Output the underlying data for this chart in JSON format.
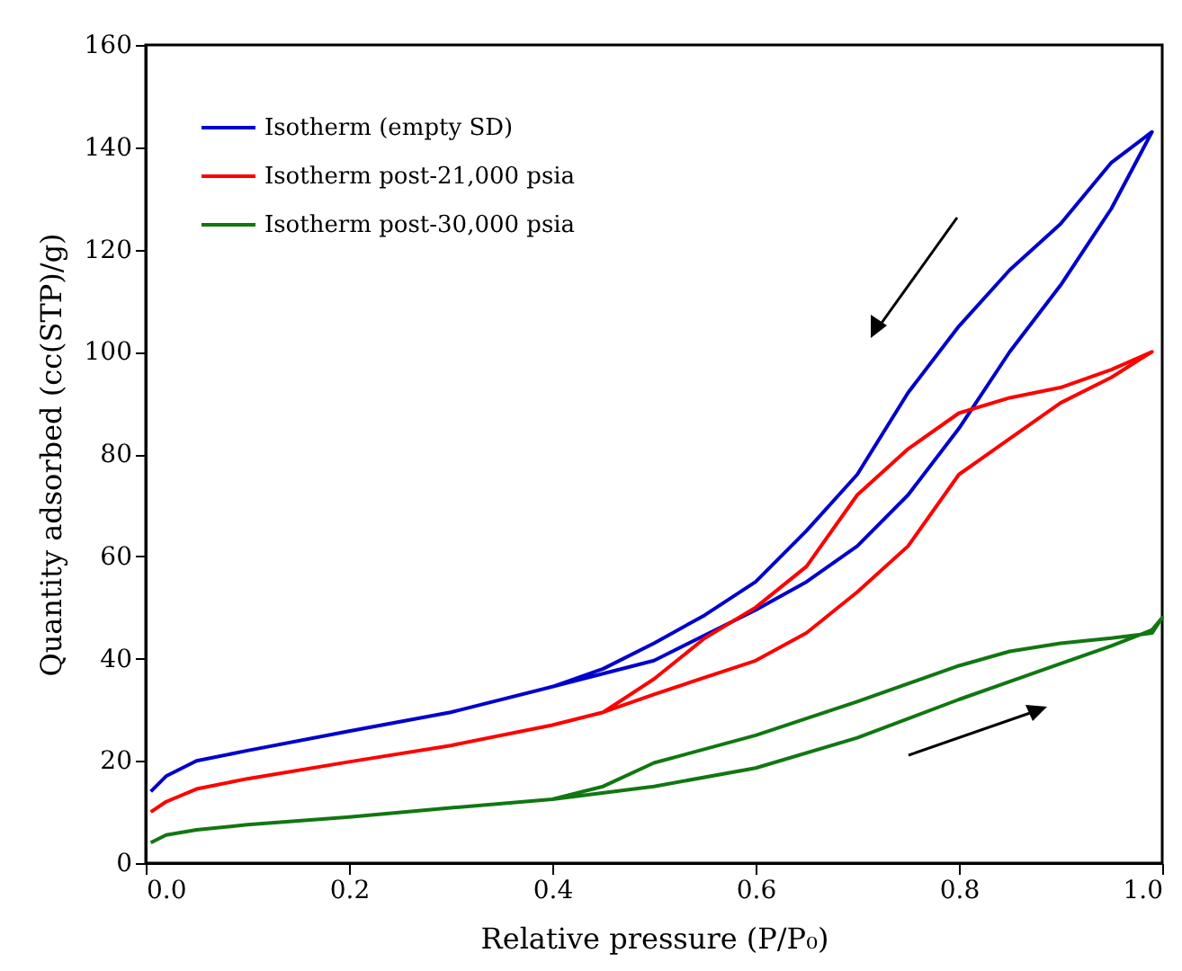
{
  "chart_data": {
    "type": "line",
    "xlabel": "Relative pressure (P/P₀)",
    "ylabel": "Quantity adsorbed (cc(STP)/g)",
    "xlim": [
      0,
      1
    ],
    "xticks": [
      {
        "value": 0,
        "label": "0.0"
      },
      0.2,
      0.4,
      0.6,
      0.8,
      {
        "value": 1,
        "label": "1.0"
      }
    ],
    "ylim": [
      0,
      160
    ],
    "yticks": [
      0,
      20,
      40,
      60,
      80,
      100,
      120,
      140,
      160
    ],
    "legend": "top left",
    "grid": false,
    "marker": "none",
    "line_style": "solid",
    "series": [
      {
        "name": "Isotherm (empty SD)",
        "color": "#0000cc",
        "x": [
          0.005,
          0.02,
          0.05,
          0.1,
          0.2,
          0.3,
          0.4,
          0.5,
          0.6,
          0.65,
          0.7,
          0.75,
          0.8,
          0.85,
          0.9,
          0.95,
          0.99,
          0.95,
          0.9,
          0.85,
          0.8,
          0.75,
          0.7,
          0.65,
          0.6,
          0.55,
          0.5,
          0.45,
          0.4
        ],
        "values": [
          14,
          17,
          20,
          22,
          25.8,
          29.5,
          34.5,
          39.6,
          49.5,
          55,
          62,
          72,
          85,
          100,
          113,
          128,
          143,
          137,
          125,
          116,
          105,
          92,
          76,
          65,
          55,
          48.5,
          43,
          38,
          34.5
        ]
      },
      {
        "name": "Isotherm post-21,000 psia",
        "color": "#ff0000",
        "x": [
          0.005,
          0.02,
          0.05,
          0.1,
          0.2,
          0.3,
          0.4,
          0.45,
          0.5,
          0.6,
          0.65,
          0.7,
          0.75,
          0.8,
          0.85,
          0.9,
          0.95,
          0.99,
          0.95,
          0.9,
          0.85,
          0.8,
          0.75,
          0.7,
          0.65,
          0.6,
          0.55,
          0.5,
          0.45
        ],
        "values": [
          10,
          12,
          14.5,
          16.5,
          19.8,
          23,
          27,
          29.5,
          33,
          39.6,
          45,
          53,
          62,
          76,
          83,
          90,
          95,
          100,
          96.5,
          93,
          91,
          88,
          81,
          72,
          58,
          50,
          44,
          36,
          29.5
        ]
      },
      {
        "name": "Isotherm post-30,000 psia",
        "color": "#117711",
        "x": [
          0.005,
          0.02,
          0.05,
          0.1,
          0.2,
          0.3,
          0.4,
          0.5,
          0.6,
          0.7,
          0.8,
          0.9,
          0.95,
          0.99,
          1.0,
          0.99,
          0.95,
          0.9,
          0.85,
          0.8,
          0.7,
          0.6,
          0.5,
          0.45,
          0.4
        ],
        "values": [
          4,
          5.5,
          6.5,
          7.5,
          9,
          10.8,
          12.5,
          15,
          18.6,
          24.5,
          32,
          39,
          42.5,
          45.6,
          48,
          45,
          44,
          43,
          41.4,
          38.6,
          31.6,
          25,
          19.6,
          15,
          12.5
        ]
      }
    ]
  }
}
